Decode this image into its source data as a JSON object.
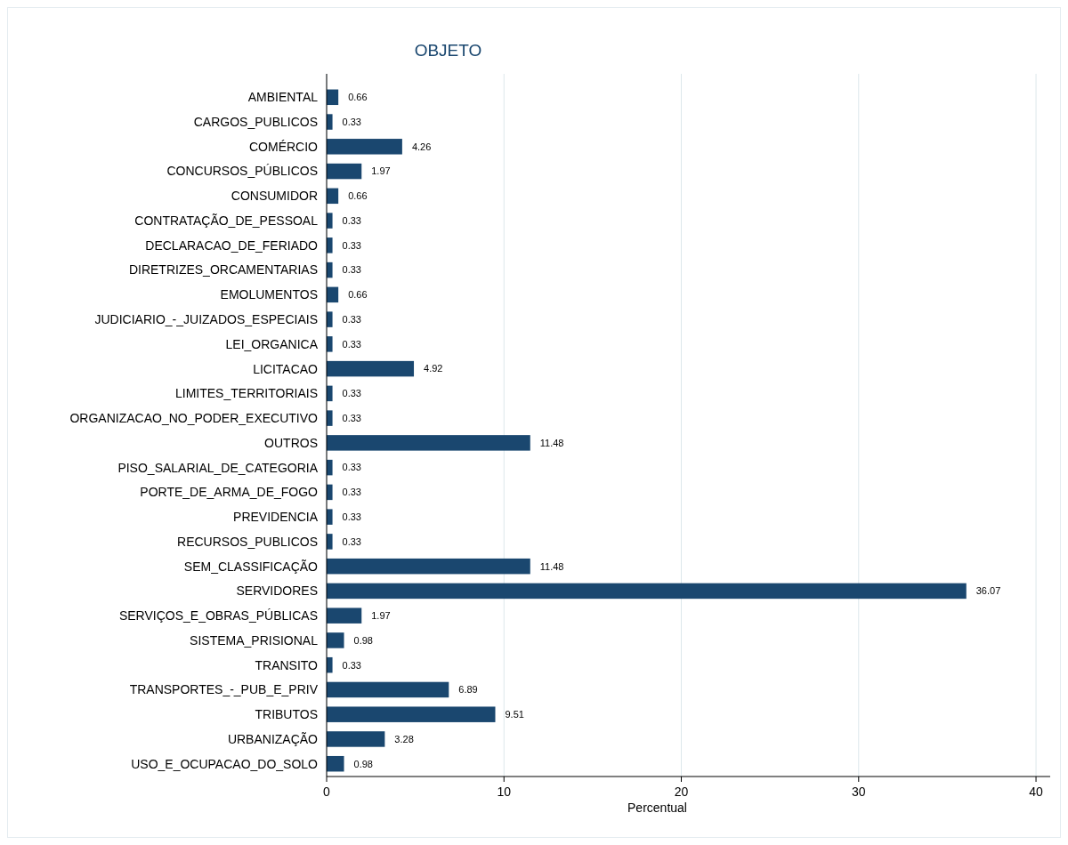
{
  "chart_data": {
    "type": "bar",
    "orientation": "horizontal",
    "title": "OBJETO",
    "xlabel": "Percentual",
    "categories": [
      "AMBIENTAL",
      "CARGOS_PUBLICOS",
      "COMÉRCIO",
      "CONCURSOS_PÚBLICOS",
      "CONSUMIDOR",
      "CONTRATAÇÃO_DE_PESSOAL",
      "DECLARACAO_DE_FERIADO",
      "DIRETRIZES_ORCAMENTARIAS",
      "EMOLUMENTOS",
      "JUDICIARIO_-_JUIZADOS_ESPECIAIS",
      "LEI_ORGANICA",
      "LICITACAO",
      "LIMITES_TERRITORIAIS",
      "ORGANIZACAO_NO_PODER_EXECUTIVO",
      "OUTROS",
      "PISO_SALARIAL_DE_CATEGORIA",
      "PORTE_DE_ARMA_DE_FOGO",
      "PREVIDENCIA",
      "RECURSOS_PUBLICOS",
      "SEM_CLASSIFICAÇÃO",
      "SERVIDORES",
      "SERVIÇOS_E_OBRAS_PÚBLICAS",
      "SISTEMA_PRISIONAL",
      "TRANSITO",
      "TRANSPORTES_-_PUB_E_PRIV",
      "TRIBUTOS",
      "URBANIZAÇÃO",
      "USO_E_OCUPACAO_DO_SOLO"
    ],
    "values": [
      0.66,
      0.33,
      4.26,
      1.97,
      0.66,
      0.33,
      0.33,
      0.33,
      0.66,
      0.33,
      0.33,
      4.92,
      0.33,
      0.33,
      11.48,
      0.33,
      0.33,
      0.33,
      0.33,
      11.48,
      36.07,
      1.97,
      0.98,
      0.33,
      6.89,
      9.51,
      3.28,
      0.98
    ],
    "color": "#1a476f",
    "data_labels": true,
    "xlim": [
      0,
      40.8
    ],
    "xticks": [
      0,
      10,
      20,
      30,
      40
    ],
    "grid": "x"
  }
}
